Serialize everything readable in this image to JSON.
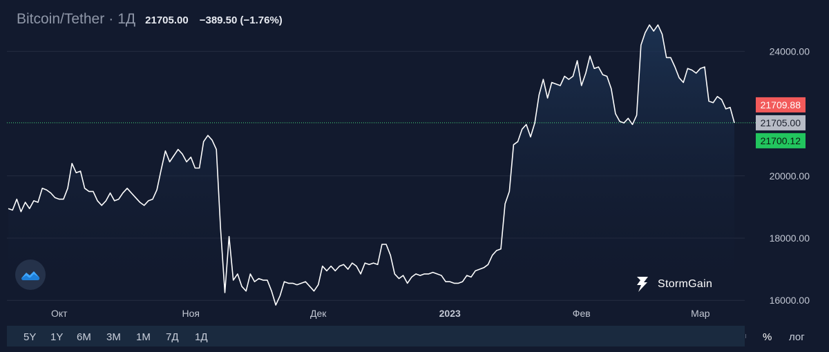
{
  "header": {
    "symbol": "Bitcoin/Tether",
    "dot": "·",
    "timeframe": "1Д",
    "last_price": "21705.00",
    "change": "−389.50 (−1.76%)"
  },
  "brand": "StormGain",
  "toolbar": {
    "ranges": [
      "5Y",
      "1Y",
      "6M",
      "3M",
      "1M",
      "7Д",
      "1Д"
    ],
    "percent_label": "%",
    "log_label": "лог"
  },
  "colors": {
    "background": "#121a2e",
    "line": "#ffffff",
    "ask_tag": "#f25a5a",
    "bid_tag": "#22c55e",
    "last_tag": "#b8bcc6",
    "last_line": "#4ade80"
  },
  "chart_data": {
    "type": "area",
    "title": "Bitcoin/Tether",
    "xlabel": "",
    "ylabel": "",
    "x_ticks": [
      "Окт",
      "Ноя",
      "Дек",
      "2023",
      "Фев",
      "Мар"
    ],
    "y_ticks": [
      "16000.00",
      "18000.00",
      "20000.00",
      "24000.00"
    ],
    "y_tick_values": [
      16000,
      18000,
      20000,
      24000
    ],
    "ylim": [
      15450,
      25650
    ],
    "grid": true,
    "price_tags": [
      {
        "name": "ask",
        "label": "21709.88",
        "value": 21709.88
      },
      {
        "name": "last",
        "label": "21705.00",
        "value": 21705.0
      },
      {
        "name": "bid",
        "label": "21700.12",
        "value": 21700.12
      }
    ],
    "x": [
      "2022-09-19",
      "2022-09-20",
      "2022-09-21",
      "2022-09-22",
      "2022-09-23",
      "2022-09-24",
      "2022-09-25",
      "2022-09-26",
      "2022-09-27",
      "2022-09-28",
      "2022-09-29",
      "2022-09-30",
      "2022-10-01",
      "2022-10-02",
      "2022-10-03",
      "2022-10-04",
      "2022-10-05",
      "2022-10-06",
      "2022-10-07",
      "2022-10-08",
      "2022-10-09",
      "2022-10-10",
      "2022-10-11",
      "2022-10-12",
      "2022-10-13",
      "2022-10-14",
      "2022-10-15",
      "2022-10-16",
      "2022-10-17",
      "2022-10-18",
      "2022-10-19",
      "2022-10-20",
      "2022-10-21",
      "2022-10-22",
      "2022-10-23",
      "2022-10-24",
      "2022-10-25",
      "2022-10-26",
      "2022-10-27",
      "2022-10-28",
      "2022-10-29",
      "2022-10-30",
      "2022-10-31",
      "2022-11-01",
      "2022-11-02",
      "2022-11-03",
      "2022-11-04",
      "2022-11-05",
      "2022-11-06",
      "2022-11-07",
      "2022-11-08",
      "2022-11-09",
      "2022-11-10",
      "2022-11-11",
      "2022-11-12",
      "2022-11-13",
      "2022-11-14",
      "2022-11-15",
      "2022-11-16",
      "2022-11-17",
      "2022-11-18",
      "2022-11-19",
      "2022-11-20",
      "2022-11-21",
      "2022-11-22",
      "2022-11-23",
      "2022-11-24",
      "2022-11-25",
      "2022-11-26",
      "2022-11-27",
      "2022-11-28",
      "2022-11-29",
      "2022-11-30",
      "2022-12-01",
      "2022-12-02",
      "2022-12-03",
      "2022-12-04",
      "2022-12-05",
      "2022-12-06",
      "2022-12-07",
      "2022-12-08",
      "2022-12-09",
      "2022-12-10",
      "2022-12-11",
      "2022-12-12",
      "2022-12-13",
      "2022-12-14",
      "2022-12-15",
      "2022-12-16",
      "2022-12-17",
      "2022-12-18",
      "2022-12-19",
      "2022-12-20",
      "2022-12-21",
      "2022-12-22",
      "2022-12-23",
      "2022-12-24",
      "2022-12-25",
      "2022-12-26",
      "2022-12-27",
      "2022-12-28",
      "2022-12-29",
      "2022-12-30",
      "2022-12-31",
      "2023-01-01",
      "2023-01-02",
      "2023-01-03",
      "2023-01-04",
      "2023-01-05",
      "2023-01-06",
      "2023-01-07",
      "2023-01-08",
      "2023-01-09",
      "2023-01-10",
      "2023-01-11",
      "2023-01-12",
      "2023-01-13",
      "2023-01-14",
      "2023-01-15",
      "2023-01-16",
      "2023-01-17",
      "2023-01-18",
      "2023-01-19",
      "2023-01-20",
      "2023-01-21",
      "2023-01-22",
      "2023-01-23",
      "2023-01-24",
      "2023-01-25",
      "2023-01-26",
      "2023-01-27",
      "2023-01-28",
      "2023-01-29",
      "2023-01-30",
      "2023-01-31",
      "2023-02-01",
      "2023-02-02",
      "2023-02-03",
      "2023-02-04",
      "2023-02-05",
      "2023-02-06",
      "2023-02-07",
      "2023-02-08",
      "2023-02-09",
      "2023-02-10",
      "2023-02-11",
      "2023-02-12",
      "2023-02-13",
      "2023-02-14",
      "2023-02-15",
      "2023-02-16",
      "2023-02-17",
      "2023-02-18",
      "2023-02-19",
      "2023-02-20",
      "2023-02-21",
      "2023-02-22",
      "2023-02-23",
      "2023-02-24",
      "2023-02-25",
      "2023-02-26",
      "2023-02-27",
      "2023-02-28",
      "2023-03-01",
      "2023-03-02",
      "2023-03-03",
      "2023-03-04",
      "2023-03-05",
      "2023-03-06",
      "2023-03-07",
      "2023-03-08",
      "2023-03-09"
    ],
    "x_tick_dates": [
      "2022-10-01",
      "2022-11-01",
      "2022-12-01",
      "2023-01-01",
      "2023-02-01",
      "2023-03-01"
    ],
    "series": [
      {
        "values": [
          18950,
          18900,
          19250,
          18850,
          19150,
          18950,
          19200,
          19150,
          19600,
          19550,
          19450,
          19300,
          19250,
          19250,
          19600,
          20400,
          20100,
          20150,
          19600,
          19500,
          19500,
          19200,
          19050,
          19200,
          19450,
          19200,
          19250,
          19450,
          19600,
          19450,
          19300,
          19150,
          19050,
          19200,
          19250,
          19550,
          20200,
          20800,
          20450,
          20650,
          20850,
          20700,
          20450,
          20600,
          20250,
          20250,
          21100,
          21300,
          21150,
          20850,
          18300,
          16250,
          18050,
          16650,
          16850,
          16450,
          16300,
          16850,
          16600,
          16700,
          16650,
          16650,
          16300,
          15850,
          16150,
          16600,
          16550,
          16550,
          16500,
          16550,
          16600,
          16450,
          16300,
          16500,
          17100,
          16950,
          17100,
          16950,
          17100,
          17150,
          17000,
          17200,
          17100,
          16850,
          17200,
          17150,
          17200,
          17150,
          17800,
          17800,
          17450,
          16850,
          16700,
          16800,
          16550,
          16750,
          16850,
          16800,
          16850,
          16850,
          16900,
          16850,
          16800,
          16600,
          16600,
          16550,
          16550,
          16600,
          16800,
          16750,
          16950,
          17000,
          17050,
          17150,
          17450,
          17600,
          17650,
          19100,
          19500,
          21000,
          21100,
          21500,
          21650,
          21250,
          21700,
          22600,
          23100,
          22500,
          23000,
          22950,
          22900,
          23200,
          23100,
          23200,
          23700,
          22900,
          23300,
          23850,
          23450,
          23500,
          23250,
          23200,
          22800,
          22000,
          21750,
          21700,
          21850,
          21650,
          21950,
          24200,
          24600,
          24850,
          24650,
          24850,
          24550,
          23800,
          23800,
          23500,
          23150,
          23000,
          23450,
          23400,
          23300,
          23450,
          23500,
          22400,
          22350,
          22550,
          22450,
          22150,
          22200,
          21705
        ]
      }
    ]
  }
}
